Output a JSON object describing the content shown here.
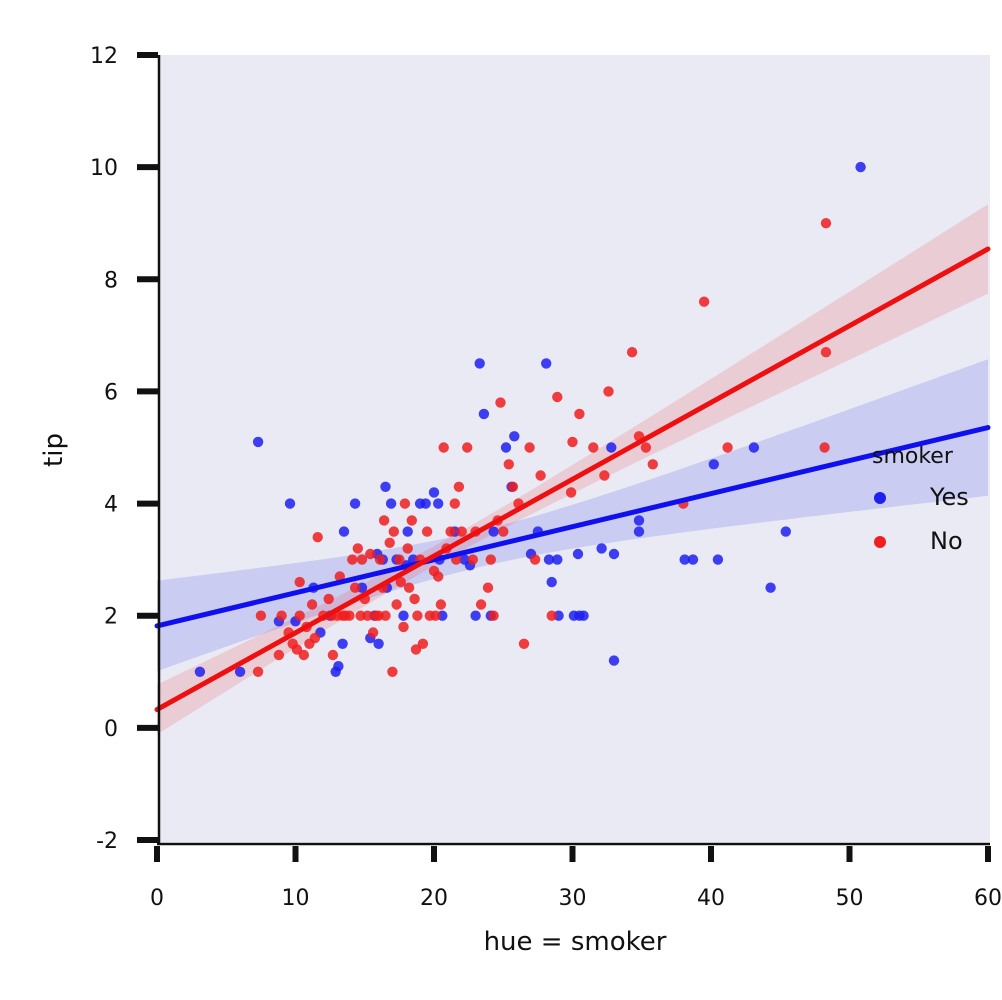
{
  "chart_data": {
    "type": "scatter",
    "title": "",
    "xlabel": "hue = smoker",
    "ylabel": "tip",
    "xlim": [
      0,
      60
    ],
    "ylim": [
      -2,
      12
    ],
    "x_ticks": [
      "0",
      "10",
      "20",
      "30",
      "40",
      "50",
      "60"
    ],
    "y_ticks": [
      "-2",
      "0",
      "2",
      "4",
      "6",
      "8",
      "10",
      "12"
    ],
    "grid": false,
    "background": "#e9eaf4",
    "legend": {
      "title": "smoker",
      "position": "right",
      "entries": [
        "Yes",
        "No"
      ]
    },
    "series": [
      {
        "name": "Yes",
        "color": "#1f1ff0",
        "points": [
          [
            3.1,
            1.0
          ],
          [
            6.0,
            1.0
          ],
          [
            7.3,
            5.1
          ],
          [
            9.6,
            4.0
          ],
          [
            8.8,
            1.9
          ],
          [
            10.0,
            1.9
          ],
          [
            11.3,
            2.5
          ],
          [
            11.8,
            1.7
          ],
          [
            12.5,
            2.0
          ],
          [
            12.9,
            1.0
          ],
          [
            13.1,
            1.1
          ],
          [
            13.4,
            1.5
          ],
          [
            13.5,
            3.5
          ],
          [
            14.3,
            4.0
          ],
          [
            14.8,
            2.5
          ],
          [
            15.4,
            1.6
          ],
          [
            15.7,
            2.0
          ],
          [
            15.9,
            3.1
          ],
          [
            16.0,
            1.5
          ],
          [
            16.3,
            3.0
          ],
          [
            16.5,
            4.3
          ],
          [
            16.6,
            2.5
          ],
          [
            16.9,
            4.0
          ],
          [
            17.3,
            3.0
          ],
          [
            17.8,
            2.0
          ],
          [
            18.0,
            2.9
          ],
          [
            18.1,
            3.5
          ],
          [
            18.5,
            3.0
          ],
          [
            19.0,
            4.0
          ],
          [
            19.4,
            4.0
          ],
          [
            20.0,
            4.2
          ],
          [
            20.3,
            4.0
          ],
          [
            20.4,
            3.0
          ],
          [
            20.6,
            2.0
          ],
          [
            21.5,
            3.5
          ],
          [
            22.2,
            3.0
          ],
          [
            22.6,
            2.9
          ],
          [
            23.0,
            2.0
          ],
          [
            23.3,
            6.5
          ],
          [
            23.6,
            5.6
          ],
          [
            24.1,
            2.0
          ],
          [
            24.3,
            3.5
          ],
          [
            25.2,
            5.0
          ],
          [
            25.6,
            4.3
          ],
          [
            25.8,
            5.2
          ],
          [
            27.0,
            3.1
          ],
          [
            27.5,
            3.5
          ],
          [
            28.1,
            6.5
          ],
          [
            28.3,
            3.0
          ],
          [
            28.5,
            2.6
          ],
          [
            28.9,
            3.0
          ],
          [
            29.0,
            2.0
          ],
          [
            30.1,
            2.0
          ],
          [
            30.4,
            3.1
          ],
          [
            30.5,
            2.0
          ],
          [
            30.8,
            2.0
          ],
          [
            32.1,
            3.2
          ],
          [
            32.8,
            5.0
          ],
          [
            33.0,
            1.2
          ],
          [
            33.0,
            3.1
          ],
          [
            34.8,
            3.7
          ],
          [
            34.8,
            3.5
          ],
          [
            38.1,
            3.0
          ],
          [
            38.7,
            3.0
          ],
          [
            40.2,
            4.7
          ],
          [
            40.5,
            3.0
          ],
          [
            43.1,
            5.0
          ],
          [
            44.3,
            2.5
          ],
          [
            45.4,
            3.5
          ],
          [
            50.8,
            10.0
          ]
        ]
      },
      {
        "name": "No",
        "color": "#f01f1f",
        "points": [
          [
            7.3,
            1.0
          ],
          [
            7.5,
            2.0
          ],
          [
            8.8,
            1.3
          ],
          [
            9.0,
            2.0
          ],
          [
            9.5,
            1.7
          ],
          [
            9.8,
            1.5
          ],
          [
            10.1,
            1.4
          ],
          [
            10.3,
            2.6
          ],
          [
            10.3,
            2.0
          ],
          [
            10.6,
            1.3
          ],
          [
            10.8,
            1.8
          ],
          [
            11.0,
            1.5
          ],
          [
            11.2,
            2.2
          ],
          [
            11.4,
            1.6
          ],
          [
            11.6,
            3.4
          ],
          [
            12.0,
            2.0
          ],
          [
            12.4,
            2.3
          ],
          [
            12.6,
            2.0
          ],
          [
            12.7,
            1.3
          ],
          [
            13.0,
            2.0
          ],
          [
            13.2,
            2.7
          ],
          [
            13.4,
            2.0
          ],
          [
            13.6,
            2.0
          ],
          [
            13.9,
            2.0
          ],
          [
            14.1,
            3.0
          ],
          [
            14.3,
            2.5
          ],
          [
            14.5,
            3.2
          ],
          [
            14.7,
            2.0
          ],
          [
            14.8,
            3.0
          ],
          [
            15.0,
            2.3
          ],
          [
            15.2,
            2.0
          ],
          [
            15.4,
            3.1
          ],
          [
            15.6,
            1.7
          ],
          [
            15.8,
            2.0
          ],
          [
            16.0,
            2.0
          ],
          [
            16.1,
            3.0
          ],
          [
            16.3,
            2.5
          ],
          [
            16.4,
            3.7
          ],
          [
            16.5,
            2.0
          ],
          [
            16.8,
            3.3
          ],
          [
            17.0,
            1.0
          ],
          [
            17.1,
            3.5
          ],
          [
            17.3,
            2.2
          ],
          [
            17.5,
            3.0
          ],
          [
            17.6,
            2.6
          ],
          [
            17.8,
            1.8
          ],
          [
            17.9,
            4.0
          ],
          [
            18.1,
            3.2
          ],
          [
            18.2,
            2.5
          ],
          [
            18.4,
            3.7
          ],
          [
            18.6,
            2.3
          ],
          [
            18.7,
            1.4
          ],
          [
            18.8,
            2.0
          ],
          [
            19.0,
            3.0
          ],
          [
            19.2,
            1.5
          ],
          [
            19.5,
            3.5
          ],
          [
            19.7,
            2.0
          ],
          [
            20.0,
            2.8
          ],
          [
            20.1,
            2.0
          ],
          [
            20.3,
            2.7
          ],
          [
            20.5,
            2.2
          ],
          [
            20.7,
            5.0
          ],
          [
            20.9,
            3.2
          ],
          [
            21.2,
            3.5
          ],
          [
            21.5,
            4.0
          ],
          [
            21.6,
            3.0
          ],
          [
            21.8,
            4.3
          ],
          [
            22.0,
            3.5
          ],
          [
            22.4,
            5.0
          ],
          [
            22.8,
            3.0
          ],
          [
            23.0,
            3.5
          ],
          [
            23.4,
            2.2
          ],
          [
            23.9,
            2.5
          ],
          [
            24.1,
            3.0
          ],
          [
            24.3,
            2.0
          ],
          [
            24.6,
            3.7
          ],
          [
            24.8,
            5.8
          ],
          [
            25.0,
            3.5
          ],
          [
            25.4,
            4.7
          ],
          [
            25.7,
            4.3
          ],
          [
            26.1,
            4.0
          ],
          [
            26.5,
            1.5
          ],
          [
            26.9,
            5.0
          ],
          [
            27.3,
            3.0
          ],
          [
            27.7,
            4.5
          ],
          [
            28.5,
            2.0
          ],
          [
            28.9,
            5.9
          ],
          [
            29.9,
            4.2
          ],
          [
            30.0,
            5.1
          ],
          [
            30.5,
            5.6
          ],
          [
            31.5,
            5.0
          ],
          [
            32.3,
            4.5
          ],
          [
            32.6,
            6.0
          ],
          [
            34.3,
            6.7
          ],
          [
            34.8,
            5.2
          ],
          [
            35.3,
            5.0
          ],
          [
            35.8,
            4.7
          ],
          [
            38.0,
            4.0
          ],
          [
            39.5,
            7.6
          ],
          [
            41.2,
            5.0
          ],
          [
            48.3,
            9.0
          ],
          [
            48.3,
            6.7
          ],
          [
            48.2,
            5.0
          ]
        ]
      }
    ]
  }
}
